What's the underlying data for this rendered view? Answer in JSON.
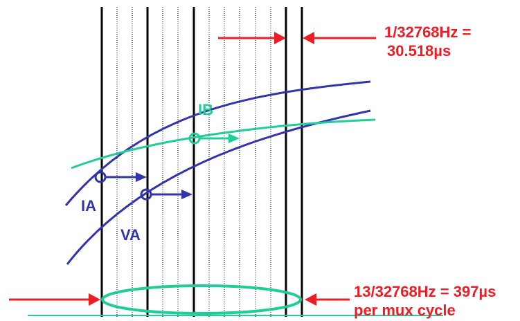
{
  "labels": {
    "sample_period_line1": "1/32768Hz =",
    "sample_period_line2": "30.518µs",
    "mux_cycle_line1": "13/32768Hz = 397µs",
    "mux_cycle_line2": "per mux cycle",
    "curve_ia": "IA",
    "curve_va": "VA",
    "curve_ib": "IB"
  },
  "colors": {
    "red": "#ee1c24",
    "blue": "#3333aa",
    "teal": "#22cc99",
    "black": "#000000"
  }
}
